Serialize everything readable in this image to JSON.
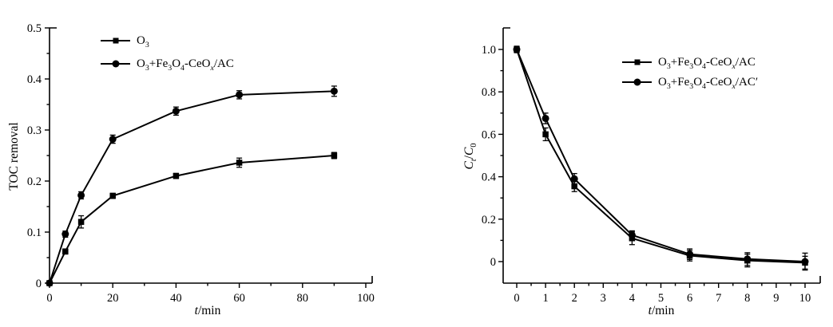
{
  "background_color": "#ffffff",
  "ink_color": "#000000",
  "chart_data": [
    {
      "type": "line",
      "title": "",
      "xlabel": "*t*/min",
      "ylabel": "TOC removal",
      "xlim": [
        0,
        100
      ],
      "ylim": [
        0,
        0.5
      ],
      "grid": false,
      "error_bars": true,
      "legend_position": "top-left-inside",
      "x": [
        0,
        5,
        10,
        20,
        40,
        60,
        90
      ],
      "xticks_major": [
        0,
        20,
        40,
        60,
        80,
        100
      ],
      "xtick_labels": [
        "0",
        "20",
        "40",
        "60",
        "80",
        "100"
      ],
      "xticks_minor": [
        10,
        30,
        50,
        70,
        90
      ],
      "yticks_major": [
        0,
        0.1,
        0.2,
        0.3,
        0.4,
        0.5
      ],
      "ytick_labels": [
        "0",
        "0.1",
        "0.2",
        "0.3",
        "0.4",
        "0.5"
      ],
      "yticks_minor": [
        0.05,
        0.15,
        0.25,
        0.35,
        0.45
      ],
      "series": [
        {
          "name": "O_3_",
          "marker": "square",
          "values": [
            0,
            0.062,
            0.12,
            0.171,
            0.21,
            0.236,
            0.25
          ],
          "errors": [
            0,
            0.005,
            0.012,
            0.005,
            0.005,
            0.009,
            0.006
          ]
        },
        {
          "name": "O_3_+Fe_3_O_4_-CeO_*x*_/AC",
          "marker": "circle",
          "values": [
            0,
            0.096,
            0.172,
            0.282,
            0.337,
            0.369,
            0.376
          ],
          "errors": [
            0,
            0.006,
            0.007,
            0.008,
            0.008,
            0.008,
            0.01
          ]
        }
      ]
    },
    {
      "type": "line",
      "title": "",
      "xlabel": "*t*/min",
      "ylabel": "*C*_*t*_/*C*_0_",
      "xlim": [
        0,
        10
      ],
      "ylim": [
        0,
        1.0
      ],
      "grid": false,
      "error_bars": true,
      "legend_position": "top-right-inside",
      "x": [
        0,
        1,
        2,
        4,
        6,
        8,
        10
      ],
      "xticks_major": [
        0,
        1,
        2,
        3,
        4,
        5,
        6,
        7,
        8,
        9,
        10
      ],
      "xtick_labels": [
        "0",
        "1",
        "2",
        "3",
        "4",
        "5",
        "6",
        "7",
        "8",
        "9",
        "10"
      ],
      "xticks_minor": [
        0.5,
        1.5,
        2.5,
        3.5,
        4.5,
        5.5,
        6.5,
        7.5,
        8.5,
        9.5
      ],
      "yticks_major": [
        0,
        0.2,
        0.4,
        0.6,
        0.8,
        1.0
      ],
      "ytick_labels": [
        "0",
        "0.2",
        "0.4",
        "0.6",
        "0.8",
        "1.0"
      ],
      "yticks_minor": [
        0.1,
        0.3,
        0.5,
        0.7,
        0.9
      ],
      "series": [
        {
          "name": "O_3_+Fe_3_O_4_-CeO_*x*_/AC",
          "marker": "square",
          "values": [
            1.0,
            0.6,
            0.355,
            0.11,
            0.028,
            0.005,
            -0.005
          ],
          "errors": [
            0.015,
            0.03,
            0.025,
            0.03,
            0.025,
            0.03,
            0.03
          ]
        },
        {
          "name": "O_3_+Fe_3_O_4_-CeO_*x*_/AC′",
          "marker": "circle",
          "values": [
            1.0,
            0.675,
            0.39,
            0.125,
            0.035,
            0.012,
            0.0
          ],
          "errors": [
            0.015,
            0.025,
            0.025,
            0.02,
            0.025,
            0.03,
            0.04
          ]
        }
      ]
    }
  ]
}
